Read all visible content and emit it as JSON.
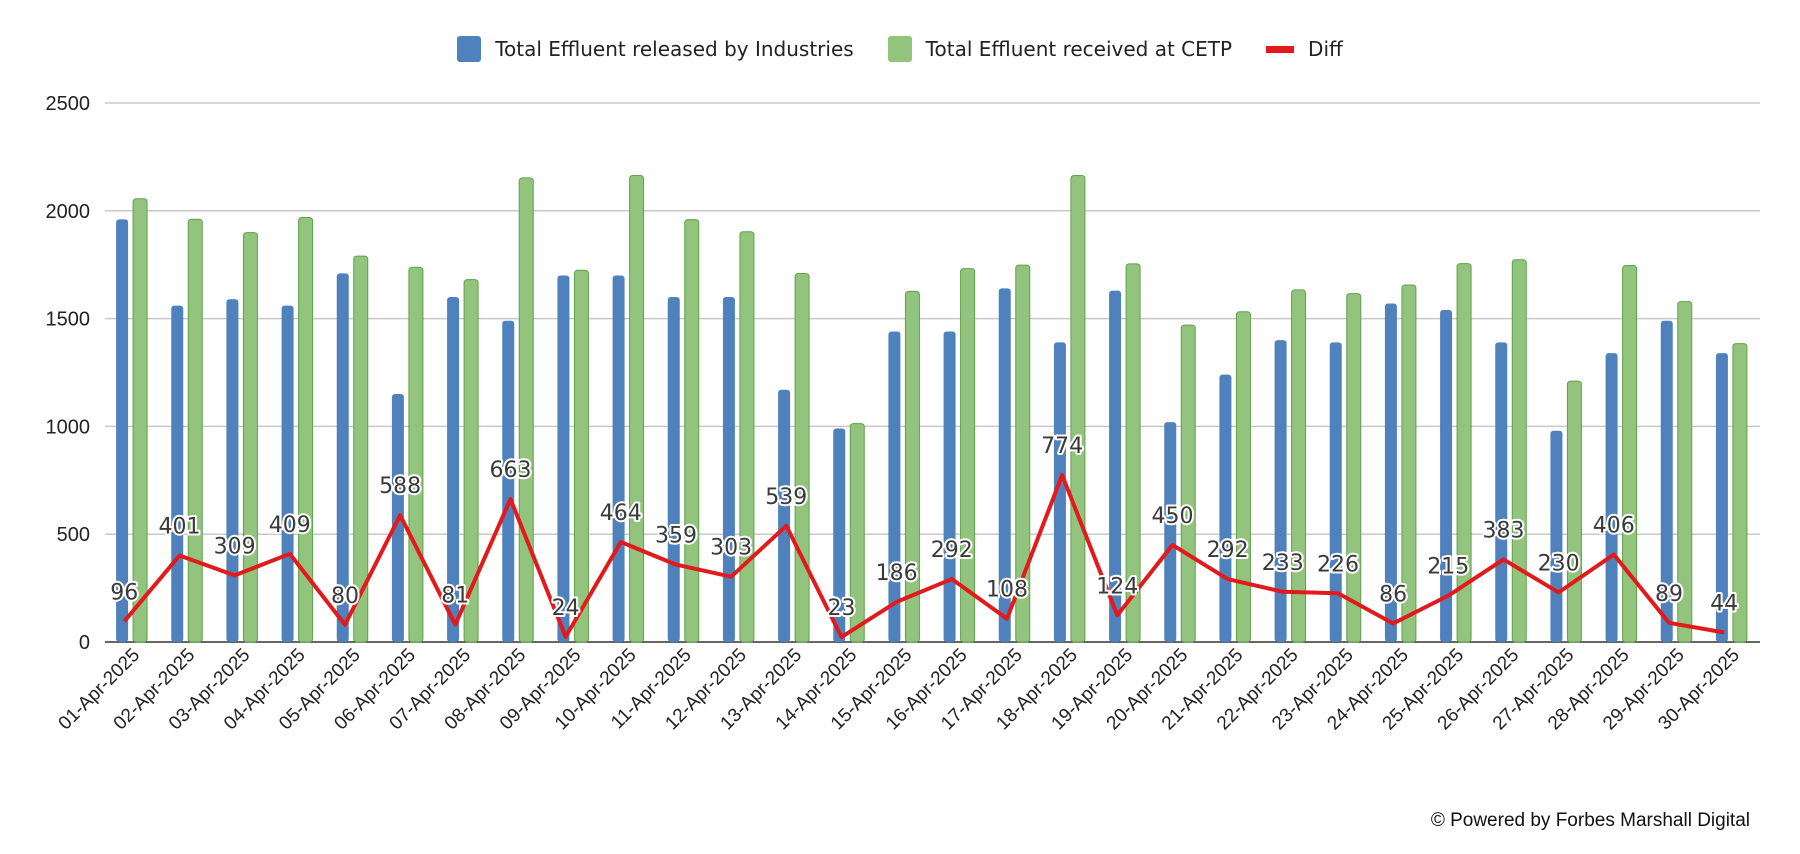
{
  "chart_data": {
    "type": "bar",
    "categories": [
      "01-Apr-2025",
      "02-Apr-2025",
      "03-Apr-2025",
      "04-Apr-2025",
      "05-Apr-2025",
      "06-Apr-2025",
      "07-Apr-2025",
      "08-Apr-2025",
      "09-Apr-2025",
      "10-Apr-2025",
      "11-Apr-2025",
      "12-Apr-2025",
      "13-Apr-2025",
      "14-Apr-2025",
      "15-Apr-2025",
      "16-Apr-2025",
      "17-Apr-2025",
      "18-Apr-2025",
      "19-Apr-2025",
      "20-Apr-2025",
      "21-Apr-2025",
      "22-Apr-2025",
      "23-Apr-2025",
      "24-Apr-2025",
      "25-Apr-2025",
      "26-Apr-2025",
      "27-Apr-2025",
      "28-Apr-2025",
      "29-Apr-2025",
      "30-Apr-2025"
    ],
    "series": [
      {
        "name": "Total Effluent released by Industries",
        "kind": "bar",
        "color": "#4f81bd",
        "values": [
          1960,
          1560,
          1590,
          1560,
          1710,
          1150,
          1600,
          1490,
          1700,
          1700,
          1600,
          1600,
          1170,
          990,
          1440,
          1440,
          1640,
          1390,
          1630,
          1020,
          1240,
          1400,
          1390,
          1570,
          1540,
          1390,
          980,
          1340,
          1490,
          1340
        ]
      },
      {
        "name": "Total Effluent received at CETP",
        "kind": "bar",
        "color": "#93c47d",
        "values": [
          2056,
          1961,
          1899,
          1969,
          1790,
          1738,
          1681,
          2153,
          1724,
          2164,
          1959,
          1903,
          1709,
          1013,
          1626,
          1732,
          1748,
          2164,
          1754,
          1470,
          1532,
          1633,
          1616,
          1656,
          1755,
          1773,
          1210,
          1746,
          1579,
          1384
        ]
      },
      {
        "name": "Diff",
        "kind": "line",
        "color": "#e31a1c",
        "values": [
          96,
          401,
          309,
          409,
          80,
          588,
          81,
          663,
          24,
          464,
          359,
          303,
          539,
          23,
          186,
          292,
          108,
          774,
          124,
          450,
          292,
          233,
          226,
          86,
          215,
          383,
          230,
          406,
          89,
          44
        ]
      }
    ],
    "ylim": [
      0,
      2500
    ],
    "yticks": [
      0,
      500,
      1000,
      1500,
      2000,
      2500
    ],
    "grid": true,
    "legend_position": "top-center",
    "title": "",
    "xlabel": "",
    "ylabel": ""
  },
  "legend": {
    "items": [
      {
        "label": "Total Effluent released by Industries"
      },
      {
        "label": "Total Effluent received at CETP"
      },
      {
        "label": "Diff"
      }
    ]
  },
  "footer": {
    "credit": "© Powered by Forbes Marshall Digital"
  }
}
